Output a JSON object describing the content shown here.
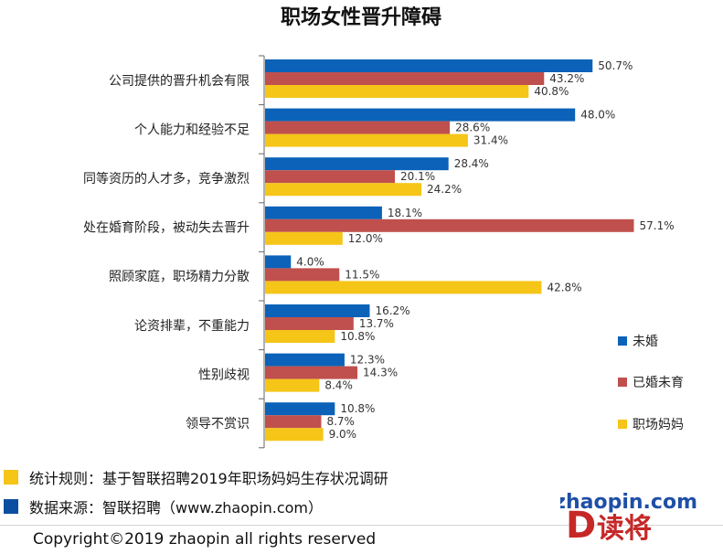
{
  "chart_data": {
    "type": "bar",
    "orientation": "horizontal",
    "title": "职场女性晋升障碍",
    "categories": [
      "公司提供的晋升机会有限",
      "个人能力和经验不足",
      "同等资历的人才多，竞争激烈",
      "处在婚育阶段，被动失去晋升",
      "照顾家庭，职场精力分散",
      "论资排辈，不重能力",
      "性别歧视",
      "领导不赏识"
    ],
    "series": [
      {
        "name": "未婚",
        "color": "#0b62b8",
        "values": [
          50.7,
          48.0,
          28.4,
          18.1,
          4.0,
          16.2,
          12.3,
          10.8
        ],
        "labels": [
          "50.7%",
          "48.0%",
          "28.4%",
          "18.1%",
          "4.0%",
          "16.2%",
          "12.3%",
          "10.8%"
        ]
      },
      {
        "name": "已婚未育",
        "color": "#c0504d",
        "values": [
          43.2,
          28.6,
          20.1,
          57.1,
          11.5,
          13.7,
          14.3,
          8.7
        ],
        "labels": [
          "43.2%",
          "28.6%",
          "20.1%",
          "57.1%",
          "11.5%",
          "13.7%",
          "14.3%",
          "8.7%"
        ]
      },
      {
        "name": "职场妈妈",
        "color": "#f5c518",
        "values": [
          40.8,
          31.4,
          24.2,
          12.0,
          42.8,
          10.8,
          8.4,
          9.0
        ],
        "labels": [
          "40.8%",
          "31.4%",
          "24.2%",
          "12.0%",
          "42.8%",
          "10.8%",
          "8.4%",
          "9.0%"
        ]
      }
    ],
    "xlim": [
      0,
      60
    ],
    "grid": false,
    "legend_position": "right"
  },
  "footer": {
    "rule_text": "统计规则：基于智联招聘2019年职场妈妈生存状况调研",
    "source_text": "数据来源：智联招聘（www.zhaopin.com）",
    "copyright": "Copyright©2019 zhaopin all rights reserved"
  },
  "watermark": {
    "brand": "智联招聘",
    "site": "zhaopin.com",
    "sub": "读将"
  }
}
